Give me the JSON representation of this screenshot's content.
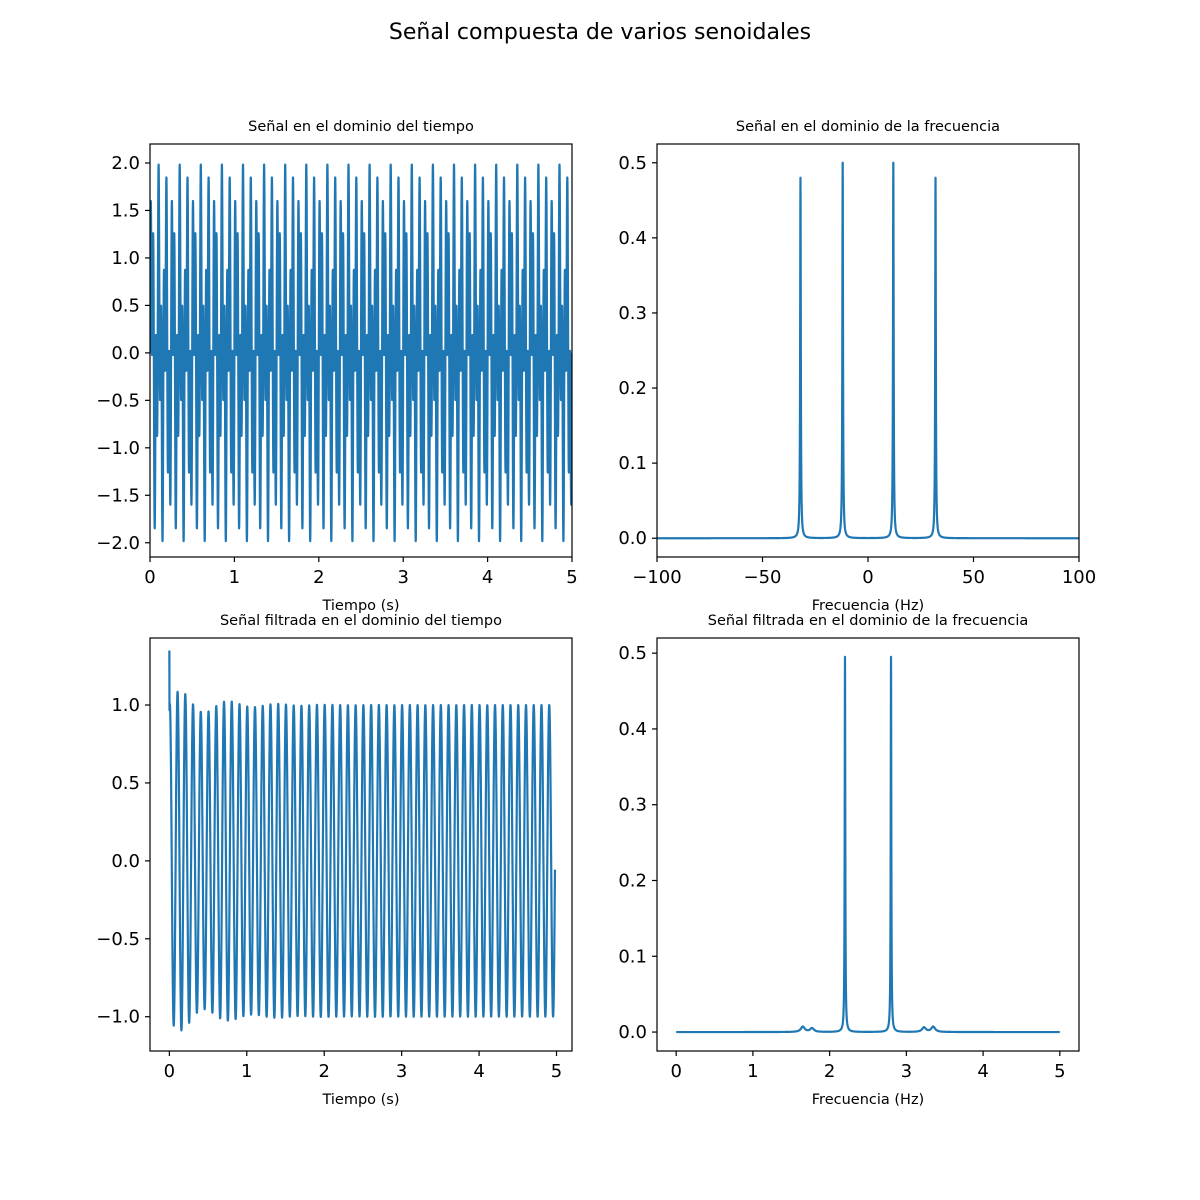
{
  "suptitle": "Señal compuesta de varios senoidales",
  "colors": {
    "line": "#1f77b4",
    "axes": "#000000",
    "background": "#ffffff"
  },
  "chart_data": [
    {
      "id": "time",
      "type": "line",
      "title": "Señal en el dominio del tiempo",
      "xlabel": "Tiempo (s)",
      "ylabel": "",
      "xlim": [
        0,
        5
      ],
      "ylim": [
        -2.15,
        2.2
      ],
      "xticks": [
        0,
        1,
        2,
        3,
        4,
        5
      ],
      "yticks": [
        -2.0,
        -1.5,
        -1.0,
        -0.5,
        0.0,
        0.5,
        1.0,
        1.5,
        2.0
      ],
      "tick_decimals": {
        "x": 0,
        "y": 1
      },
      "grid": false,
      "signal": {
        "kind": "sum_of_sines",
        "components": [
          {
            "freq_hz": 12.0,
            "amplitude": 1.0
          },
          {
            "freq_hz": 32.0,
            "amplitude": 1.0
          }
        ],
        "t_start": 0,
        "t_end": 5,
        "samples": 5000
      }
    },
    {
      "id": "freq",
      "type": "line",
      "title": "Señal en el dominio de la frecuencia",
      "xlabel": "Frecuencia (Hz)",
      "ylabel": "",
      "xlim": [
        -100,
        100
      ],
      "ylim": [
        -0.025,
        0.525
      ],
      "xticks": [
        -100,
        -50,
        0,
        50,
        100
      ],
      "yticks": [
        0.0,
        0.1,
        0.2,
        0.3,
        0.4,
        0.5
      ],
      "tick_decimals": {
        "x": 0,
        "y": 1
      },
      "grid": false,
      "spectrum": {
        "x_range": [
          -100,
          100
        ],
        "peaks": [
          {
            "x": -32,
            "height": 0.48
          },
          {
            "x": -12,
            "height": 0.5
          },
          {
            "x": 12,
            "height": 0.5
          },
          {
            "x": 32,
            "height": 0.48
          }
        ]
      }
    },
    {
      "id": "filtered_time",
      "type": "line",
      "title": "Señal filtrada en el dominio del tiempo",
      "xlabel": "Tiempo (s)",
      "ylabel": "",
      "xlim": [
        -0.25,
        5.2
      ],
      "ylim": [
        -1.22,
        1.43
      ],
      "xticks": [
        0,
        1,
        2,
        3,
        4,
        5
      ],
      "yticks": [
        -1.0,
        -0.5,
        0.0,
        0.5,
        1.0
      ],
      "tick_decimals": {
        "x": 0,
        "y": 1
      },
      "grid": false,
      "signal": {
        "kind": "filtered_sine",
        "freq_hz": 10.0,
        "amplitude": 1.0,
        "start_value": 1.35,
        "t_start": 0,
        "t_end": 4.98,
        "samples": 3000
      }
    },
    {
      "id": "filtered_freq",
      "type": "line",
      "title": "Señal filtrada en el dominio de la frecuencia",
      "xlabel": "Frecuencia (Hz)",
      "ylabel": "",
      "xlim": [
        -0.25,
        5.25
      ],
      "ylim": [
        -0.025,
        0.52
      ],
      "xticks": [
        0,
        1,
        2,
        3,
        4,
        5
      ],
      "yticks": [
        0.0,
        0.1,
        0.2,
        0.3,
        0.4,
        0.5
      ],
      "tick_decimals": {
        "x": 0,
        "y": 1
      },
      "grid": false,
      "spectrum": {
        "x_range": [
          0,
          5
        ],
        "peaks": [
          {
            "x": 2.2,
            "height": 0.495
          },
          {
            "x": 2.8,
            "height": 0.495
          }
        ],
        "minor_bumps": [
          {
            "x": 1.65,
            "height": 0.007
          },
          {
            "x": 1.77,
            "height": 0.005
          },
          {
            "x": 3.23,
            "height": 0.006
          },
          {
            "x": 3.35,
            "height": 0.007
          }
        ]
      }
    }
  ]
}
